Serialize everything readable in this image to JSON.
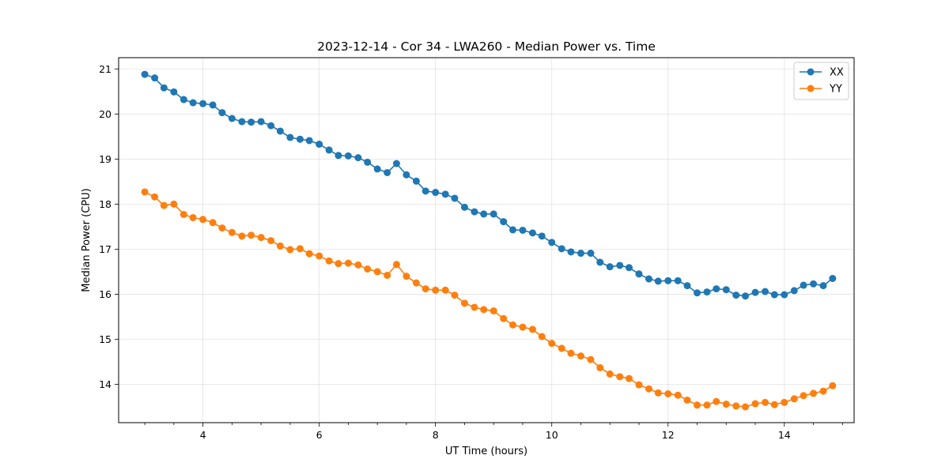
{
  "chart_data": {
    "type": "line",
    "title": "2023-12-14 - Cor 34 - LWA260 - Median Power vs. Time",
    "xlabel": "UT Time (hours)",
    "ylabel": "Median Power (CPU)",
    "xlim": [
      2.55,
      15.2
    ],
    "ylim": [
      13.15,
      21.25
    ],
    "xticks": [
      4,
      6,
      8,
      10,
      12,
      14
    ],
    "yticks": [
      14,
      15,
      16,
      17,
      18,
      19,
      20,
      21
    ],
    "grid": true,
    "legend_position": "top-right",
    "x": [
      3.0,
      3.17,
      3.33,
      3.5,
      3.67,
      3.83,
      4.0,
      4.17,
      4.33,
      4.5,
      4.67,
      4.83,
      5.0,
      5.17,
      5.33,
      5.5,
      5.67,
      5.83,
      6.0,
      6.17,
      6.33,
      6.5,
      6.67,
      6.83,
      7.0,
      7.17,
      7.33,
      7.5,
      7.67,
      7.83,
      8.0,
      8.17,
      8.33,
      8.5,
      8.67,
      8.83,
      9.0,
      9.17,
      9.33,
      9.5,
      9.67,
      9.83,
      10.0,
      10.17,
      10.33,
      10.5,
      10.67,
      10.83,
      11.0,
      11.17,
      11.33,
      11.5,
      11.67,
      11.83,
      12.0,
      12.17,
      12.33,
      12.5,
      12.67,
      12.83,
      13.0,
      13.17,
      13.33,
      13.5,
      13.67,
      13.83,
      14.0,
      14.17,
      14.33,
      14.5,
      14.67,
      14.83
    ],
    "series": [
      {
        "name": "XX",
        "color": "#1f77b4",
        "values": [
          20.88,
          20.8,
          20.58,
          20.49,
          20.32,
          20.25,
          20.23,
          20.2,
          20.03,
          19.9,
          19.83,
          19.82,
          19.83,
          19.74,
          19.62,
          19.48,
          19.44,
          19.41,
          19.33,
          19.2,
          19.08,
          19.07,
          19.03,
          18.93,
          18.78,
          18.7,
          18.9,
          18.65,
          18.51,
          18.29,
          18.26,
          18.22,
          18.13,
          17.93,
          17.83,
          17.78,
          17.78,
          17.61,
          17.43,
          17.42,
          17.36,
          17.29,
          17.15,
          17.01,
          16.94,
          16.91,
          16.91,
          16.71,
          16.61,
          16.64,
          16.59,
          16.45,
          16.34,
          16.29,
          16.3,
          16.3,
          16.19,
          16.03,
          16.05,
          16.12,
          16.1,
          15.98,
          15.96,
          16.04,
          16.06,
          15.99,
          15.99,
          16.08,
          16.2,
          16.23,
          16.19,
          16.35
        ]
      },
      {
        "name": "YY",
        "color": "#ff7f0e",
        "values": [
          18.27,
          18.16,
          17.97,
          18.0,
          17.77,
          17.7,
          17.66,
          17.59,
          17.47,
          17.37,
          17.29,
          17.31,
          17.26,
          17.19,
          17.07,
          16.99,
          17.01,
          16.9,
          16.85,
          16.74,
          16.68,
          16.69,
          16.65,
          16.56,
          16.5,
          16.42,
          16.66,
          16.4,
          16.25,
          16.12,
          16.09,
          16.09,
          15.98,
          15.8,
          15.71,
          15.66,
          15.63,
          15.46,
          15.32,
          15.27,
          15.22,
          15.06,
          14.91,
          14.8,
          14.69,
          14.63,
          14.55,
          14.37,
          14.23,
          14.17,
          14.13,
          13.99,
          13.9,
          13.81,
          13.79,
          13.76,
          13.65,
          13.54,
          13.54,
          13.62,
          13.56,
          13.52,
          13.5,
          13.57,
          13.6,
          13.55,
          13.6,
          13.68,
          13.75,
          13.8,
          13.85,
          13.97
        ]
      }
    ]
  }
}
